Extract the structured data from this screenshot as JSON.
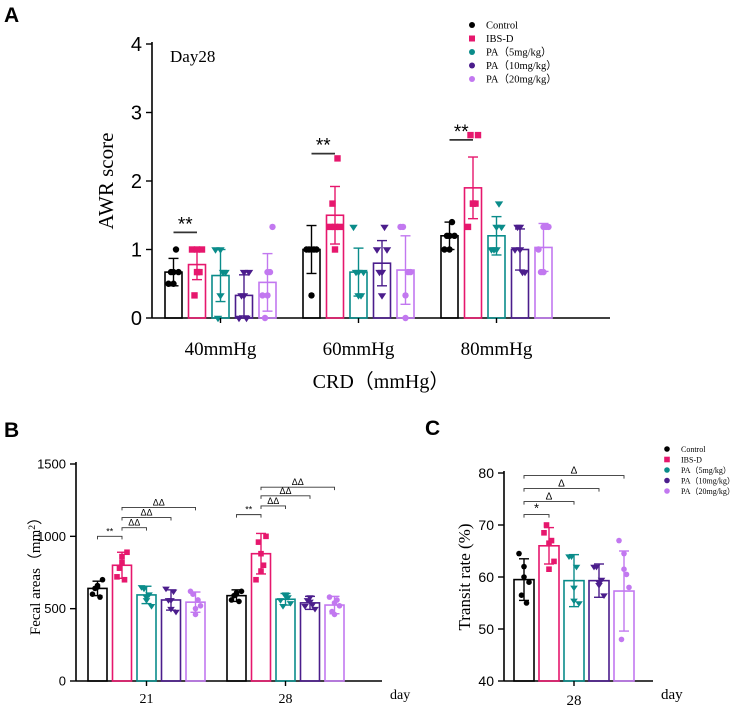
{
  "colors": {
    "Control": "#000000",
    "IBS-D": "#e6176d",
    "PA_5": "#0a8c8a",
    "PA_10": "#4b1d8c",
    "PA_20": "#c278f0"
  },
  "chart_data": [
    {
      "panel": "A",
      "type": "bar",
      "title": "Day28",
      "xlabel": "CRD（mmHg）",
      "ylabel": "AWR score",
      "ylim": [
        0,
        4
      ],
      "yticks": [
        "0",
        "1",
        "2",
        "3",
        "4"
      ],
      "categories": [
        "40mmHg",
        "60mmHg",
        "80mmHg"
      ],
      "legend": [
        "Control",
        "IBS-D",
        "PA（5mg/kg）",
        "PA（10mg/kg）",
        "PA（20mg/kg）"
      ],
      "legend_position": "top-right",
      "series": [
        {
          "name": "Control",
          "color_key": "Control",
          "values": [
            0.67,
            1.0,
            1.2
          ],
          "err": [
            0.2,
            0.35,
            0.2
          ],
          "points": [
            [
              0.5,
              0.67,
              0.67,
              0.67,
              1.0,
              0.5
            ],
            [
              1.0,
              1.0,
              1.0,
              1.0,
              1.0,
              0.33
            ],
            [
              1.0,
              1.2,
              1.2,
              1.2,
              1.4,
              1.0
            ]
          ]
        },
        {
          "name": "IBS-D",
          "color_key": "IBS-D",
          "values": [
            0.78,
            1.5,
            1.9
          ],
          "err": [
            0.22,
            0.42,
            0.45
          ],
          "points": [
            [
              1.0,
              0.67,
              1.0,
              0.33,
              0.67,
              1.0
            ],
            [
              1.33,
              1.33,
              1.33,
              1.67,
              2.33,
              1.0
            ],
            [
              1.33,
              1.67,
              2.67,
              2.67,
              1.67,
              1.67
            ]
          ]
        },
        {
          "name": "PA（5mg/kg）",
          "color_key": "PA_5",
          "values": [
            0.62,
            0.67,
            1.2
          ],
          "err": [
            0.38,
            0.35,
            0.28
          ],
          "points": [
            [
              1.0,
              1.0,
              0.67,
              0.0,
              0.67,
              0.33
            ],
            [
              1.33,
              0.67,
              0.67,
              0.67,
              0.33,
              0.33
            ],
            [
              1.0,
              1.0,
              1.33,
              1.0,
              1.67,
              1.33
            ]
          ]
        },
        {
          "name": "PA（10mg/kg）",
          "color_key": "PA_10",
          "values": [
            0.33,
            0.8,
            1.0
          ],
          "err": [
            0.3,
            0.33,
            0.3
          ],
          "points": [
            [
              0.0,
              0.33,
              0.67,
              0.33,
              0.0,
              0.67
            ],
            [
              1.0,
              0.33,
              1.0,
              0.67,
              1.33,
              0.67
            ],
            [
              1.0,
              1.0,
              0.67,
              1.33,
              0.67,
              1.33
            ]
          ]
        },
        {
          "name": "PA（20mg/kg）",
          "color_key": "PA_20",
          "values": [
            0.52,
            0.7,
            1.03
          ],
          "err": [
            0.42,
            0.5,
            0.35
          ],
          "points": [
            [
              0.33,
              0.67,
              1.33,
              0.0,
              0.67,
              0.33
            ],
            [
              1.33,
              0.0,
              0.67,
              1.33,
              0.67,
              0.33
            ],
            [
              1.0,
              1.33,
              1.33,
              0.67,
              1.33,
              0.67
            ]
          ]
        }
      ],
      "annotations": [
        {
          "group": 0,
          "from": 0,
          "to": 1,
          "label": "**",
          "y": 1.25
        },
        {
          "group": 1,
          "from": 0,
          "to": 1,
          "label": "**",
          "y": 2.4
        },
        {
          "group": 2,
          "from": 0,
          "to": 1,
          "label": "**",
          "y": 2.6
        }
      ]
    },
    {
      "panel": "B",
      "type": "bar",
      "xlabel": "day",
      "ylabel": "Fecal areas（mm²）",
      "ylim": [
        0,
        1500
      ],
      "yticks": [
        "0",
        "500",
        "1000",
        "1500"
      ],
      "categories": [
        "21",
        "28"
      ],
      "series": [
        {
          "name": "Control",
          "color_key": "Control",
          "values": [
            640,
            590
          ],
          "err": [
            50,
            40
          ],
          "points": [
            [
              600,
              650,
              700,
              640,
              580,
              660
            ],
            [
              560,
              600,
              620,
              590,
              550,
              610
            ]
          ]
        },
        {
          "name": "IBS-D",
          "color_key": "IBS-D",
          "values": [
            800,
            880
          ],
          "err": [
            90,
            140
          ],
          "points": [
            [
              720,
              820,
              890,
              780,
              700,
              860
            ],
            [
              700,
              880,
              1000,
              960,
              800,
              760
            ]
          ]
        },
        {
          "name": "PA（5mg/kg）",
          "color_key": "PA_5",
          "values": [
            595,
            565
          ],
          "err": [
            60,
            40
          ],
          "points": [
            [
              650,
              560,
              520,
              640,
              600,
              580
            ],
            [
              560,
              590,
              540,
              520,
              580,
              600
            ]
          ]
        },
        {
          "name": "PA（10mg/kg）",
          "color_key": "PA_10",
          "values": [
            560,
            540
          ],
          "err": [
            70,
            45
          ],
          "points": [
            [
              640,
              500,
              480,
              560,
              620,
              560
            ],
            [
              520,
              580,
              500,
              560,
              530,
              550
            ]
          ]
        },
        {
          "name": "PA（20mg/kg）",
          "color_key": "PA_20",
          "values": [
            545,
            525
          ],
          "err": [
            70,
            60
          ],
          "points": [
            [
              620,
              460,
              520,
              600,
              560,
              500
            ],
            [
              580,
              460,
              520,
              480,
              560,
              540
            ]
          ]
        }
      ],
      "annotations": [
        {
          "group": 0,
          "from": 0,
          "to": 1,
          "label": "**",
          "y": 1000
        },
        {
          "group": 0,
          "from": 1,
          "to": 2,
          "label": "ΔΔ",
          "y": 1060
        },
        {
          "group": 0,
          "from": 1,
          "to": 3,
          "label": "ΔΔ",
          "y": 1130
        },
        {
          "group": 0,
          "from": 1,
          "to": 4,
          "label": "ΔΔ",
          "y": 1200
        },
        {
          "group": 1,
          "from": 0,
          "to": 1,
          "label": "**",
          "y": 1150
        },
        {
          "group": 1,
          "from": 1,
          "to": 2,
          "label": "ΔΔ",
          "y": 1210
        },
        {
          "group": 1,
          "from": 1,
          "to": 3,
          "label": "ΔΔ",
          "y": 1280
        },
        {
          "group": 1,
          "from": 1,
          "to": 4,
          "label": "ΔΔ",
          "y": 1340
        }
      ]
    },
    {
      "panel": "C",
      "type": "bar",
      "xlabel": "day",
      "ylabel": "Transit rate (%)",
      "ylim": [
        40,
        80
      ],
      "yticks": [
        "40",
        "50",
        "60",
        "70",
        "80"
      ],
      "categories": [
        "28"
      ],
      "legend": [
        "Control",
        "IBS-D",
        "PA（5mg/kg）",
        "PA（10mg/kg）",
        "PA（20mg/kg）"
      ],
      "legend_position": "top-right",
      "series": [
        {
          "name": "Control",
          "color_key": "Control",
          "values": [
            59.5
          ],
          "err": [
            4.0
          ],
          "points": [
            [
              64.5,
              62.0,
              59.0,
              56.5,
              55.0,
              60.0
            ]
          ]
        },
        {
          "name": "IBS-D",
          "color_key": "IBS-D",
          "values": [
            66.0
          ],
          "err": [
            3.5
          ],
          "points": [
            [
              68.5,
              66.5,
              63.0,
              70.0,
              67.0,
              61.5
            ]
          ]
        },
        {
          "name": "PA（5mg/kg）",
          "color_key": "PA_5",
          "values": [
            59.3
          ],
          "err": [
            5.0
          ],
          "points": [
            [
              64.0,
              58.0,
              55.0,
              64.0,
              62.0,
              55.5
            ]
          ]
        },
        {
          "name": "PA（10mg/kg）",
          "color_key": "PA_10",
          "values": [
            59.3
          ],
          "err": [
            3.2
          ],
          "points": [
            [
              62.0,
              59.0,
              56.5,
              62.0,
              59.5,
              58.5
            ]
          ]
        },
        {
          "name": "PA（20mg/kg）",
          "color_key": "PA_20",
          "values": [
            57.3
          ],
          "err": [
            7.7
          ],
          "points": [
            [
              67.0,
              61.5,
              58.0,
              48.0,
              60.5,
              64.5
            ]
          ]
        }
      ],
      "annotations": [
        {
          "group": 0,
          "from": 0,
          "to": 1,
          "label": "*",
          "y": 72
        },
        {
          "group": 0,
          "from": 0,
          "to": 2,
          "label": "Δ",
          "y": 74.5
        },
        {
          "group": 0,
          "from": 0,
          "to": 3,
          "label": "Δ",
          "y": 77
        },
        {
          "group": 0,
          "from": 0,
          "to": 4,
          "label": "Δ",
          "y": 79.5
        }
      ]
    }
  ]
}
